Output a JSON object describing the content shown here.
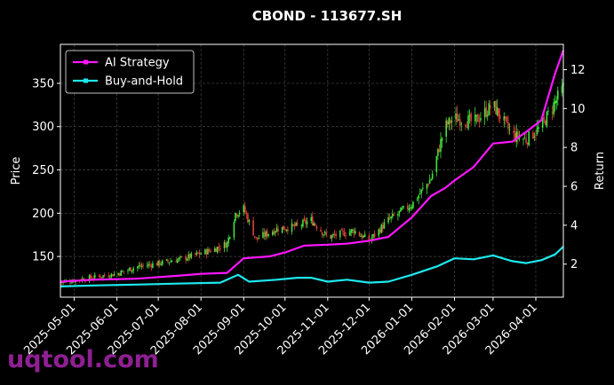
{
  "watermark": "uqtool.com",
  "chart_data": {
    "type": "line",
    "title": "CBOND - 113677.SH",
    "ylabel": "Price",
    "y2label": "Return",
    "ylim": [
      103,
      395
    ],
    "y2lim": [
      0.3,
      13.3
    ],
    "yticks": [
      150,
      200,
      250,
      300,
      350
    ],
    "y2ticks": [
      2,
      4,
      6,
      8,
      10,
      12
    ],
    "xlim": [
      "2025-04-21",
      "2026-04-21"
    ],
    "xtick_labels": [
      "2025-05-01",
      "2025-06-01",
      "2025-07-01",
      "2025-08-01",
      "2025-09-01",
      "2025-10-01",
      "2025-11-01",
      "2025-12-01",
      "2026-01-01",
      "2026-02-01",
      "2026-03-01",
      "2026-04-01"
    ],
    "grid": true,
    "legend_position": "top-left",
    "colors": {
      "up": "#41e23e",
      "down": "#e0413b",
      "strategy": "#ff16ff",
      "buyhold": "#1de9ee",
      "grid": "#444444",
      "text": "#ffffff"
    },
    "price_path": [
      [
        "2025-04-21",
        120
      ],
      [
        "2025-05-15",
        126
      ],
      [
        "2025-06-01",
        130
      ],
      [
        "2025-06-15",
        138
      ],
      [
        "2025-07-01",
        142
      ],
      [
        "2025-07-20",
        148
      ],
      [
        "2025-08-10",
        158
      ],
      [
        "2025-08-20",
        165
      ],
      [
        "2025-08-26",
        200
      ],
      [
        "2025-09-01",
        205
      ],
      [
        "2025-09-10",
        170
      ],
      [
        "2025-09-25",
        182
      ],
      [
        "2025-10-10",
        185
      ],
      [
        "2025-10-20",
        192
      ],
      [
        "2025-11-01",
        172
      ],
      [
        "2025-11-20",
        180
      ],
      [
        "2025-12-01",
        168
      ],
      [
        "2025-12-15",
        192
      ],
      [
        "2026-01-01",
        210
      ],
      [
        "2026-01-15",
        240
      ],
      [
        "2026-01-25",
        300
      ],
      [
        "2026-02-01",
        310
      ],
      [
        "2026-02-15",
        305
      ],
      [
        "2026-03-01",
        325
      ],
      [
        "2026-03-15",
        290
      ],
      [
        "2026-03-25",
        285
      ],
      [
        "2026-04-05",
        300
      ],
      [
        "2026-04-21",
        345
      ]
    ],
    "series": [
      {
        "name": "AI Strategy",
        "values": [
          [
            "2025-04-21",
            1.1
          ],
          [
            "2025-05-15",
            1.2
          ],
          [
            "2025-06-15",
            1.25
          ],
          [
            "2025-07-15",
            1.4
          ],
          [
            "2025-08-01",
            1.5
          ],
          [
            "2025-08-20",
            1.55
          ],
          [
            "2025-09-01",
            2.3
          ],
          [
            "2025-09-20",
            2.4
          ],
          [
            "2025-10-01",
            2.6
          ],
          [
            "2025-10-15",
            2.95
          ],
          [
            "2025-11-01",
            3.0
          ],
          [
            "2025-11-15",
            3.05
          ],
          [
            "2025-12-01",
            3.2
          ],
          [
            "2025-12-15",
            3.4
          ],
          [
            "2026-01-01",
            4.4
          ],
          [
            "2026-01-15",
            5.5
          ],
          [
            "2026-01-25",
            5.9
          ],
          [
            "2026-02-01",
            6.3
          ],
          [
            "2026-02-15",
            7.0
          ],
          [
            "2026-03-01",
            8.2
          ],
          [
            "2026-03-15",
            8.3
          ],
          [
            "2026-03-25",
            8.8
          ],
          [
            "2026-04-05",
            9.4
          ],
          [
            "2026-04-10",
            10.6
          ],
          [
            "2026-04-15",
            11.8
          ],
          [
            "2026-04-21",
            13.0
          ]
        ]
      },
      {
        "name": "Buy-and-Hold",
        "values": [
          [
            "2025-04-21",
            0.85
          ],
          [
            "2025-05-15",
            0.9
          ],
          [
            "2025-06-15",
            0.95
          ],
          [
            "2025-07-15",
            1.0
          ],
          [
            "2025-08-15",
            1.05
          ],
          [
            "2025-08-28",
            1.45
          ],
          [
            "2025-09-05",
            1.1
          ],
          [
            "2025-09-25",
            1.2
          ],
          [
            "2025-10-10",
            1.3
          ],
          [
            "2025-10-20",
            1.3
          ],
          [
            "2025-11-01",
            1.1
          ],
          [
            "2025-11-15",
            1.2
          ],
          [
            "2025-12-01",
            1.05
          ],
          [
            "2025-12-15",
            1.1
          ],
          [
            "2026-01-01",
            1.45
          ],
          [
            "2026-01-20",
            1.9
          ],
          [
            "2026-02-01",
            2.3
          ],
          [
            "2026-02-15",
            2.25
          ],
          [
            "2026-03-01",
            2.45
          ],
          [
            "2026-03-15",
            2.15
          ],
          [
            "2026-03-25",
            2.05
          ],
          [
            "2026-04-05",
            2.2
          ],
          [
            "2026-04-15",
            2.5
          ],
          [
            "2026-04-21",
            2.9
          ]
        ]
      }
    ]
  }
}
